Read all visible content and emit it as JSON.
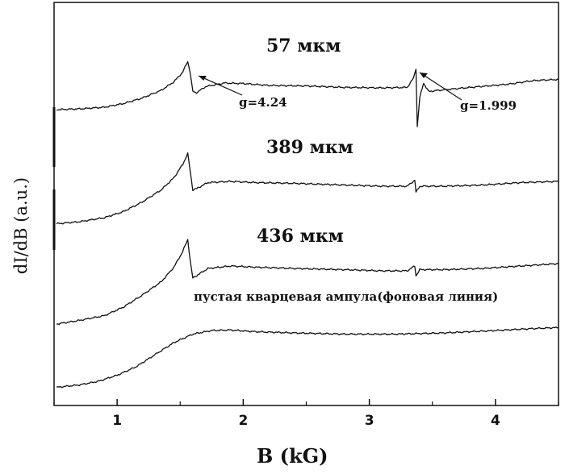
{
  "chart_data": {
    "type": "line",
    "xlabel": "B (kG)",
    "ylabel": "dI/dB (a.u.)",
    "xlim": [
      0.5,
      4.5
    ],
    "xticks": [
      1,
      2,
      3,
      4
    ],
    "xtick_labels": [
      "1",
      "2",
      "3",
      "4"
    ],
    "series_labels": {
      "s57": "57 мкм",
      "s389": "389 мкм",
      "s436": "436  мкм",
      "background": "пустая кварцевая ампула(фоновая линия)"
    },
    "annotations": {
      "g1": "g=4.24",
      "g2": "g=1.999"
    },
    "colors": {
      "line": "#111111",
      "axis": "#111111"
    },
    "series": [
      {
        "name": "57 мкм",
        "points": [
          [
            0.52,
            0.3
          ],
          [
            0.7,
            0.33
          ],
          [
            0.9,
            0.4
          ],
          [
            1.05,
            0.55
          ],
          [
            1.2,
            0.78
          ],
          [
            1.35,
            1.1
          ],
          [
            1.45,
            1.45
          ],
          [
            1.52,
            1.85
          ],
          [
            1.56,
            2.3
          ],
          [
            1.58,
            1.8
          ],
          [
            1.6,
            1.05
          ],
          [
            1.63,
            1.0
          ],
          [
            1.7,
            1.25
          ],
          [
            1.85,
            1.4
          ],
          [
            2.0,
            1.38
          ],
          [
            2.2,
            1.3
          ],
          [
            2.5,
            1.28
          ],
          [
            2.8,
            1.22
          ],
          [
            3.1,
            1.2
          ],
          [
            3.3,
            1.22
          ],
          [
            3.35,
            1.6
          ],
          [
            3.37,
            2.0
          ],
          [
            3.38,
            -0.4
          ],
          [
            3.4,
            0.8
          ],
          [
            3.43,
            1.4
          ],
          [
            3.47,
            1.05
          ],
          [
            3.55,
            1.1
          ],
          [
            3.8,
            1.22
          ],
          [
            4.1,
            1.35
          ],
          [
            4.3,
            1.5
          ],
          [
            4.5,
            1.55
          ]
        ]
      },
      {
        "name": "389 мкм",
        "points": [
          [
            0.52,
            0.25
          ],
          [
            0.7,
            0.33
          ],
          [
            0.9,
            0.5
          ],
          [
            1.05,
            0.75
          ],
          [
            1.2,
            1.15
          ],
          [
            1.35,
            1.65
          ],
          [
            1.45,
            2.15
          ],
          [
            1.52,
            2.7
          ],
          [
            1.56,
            3.15
          ],
          [
            1.58,
            2.4
          ],
          [
            1.6,
            1.65
          ],
          [
            1.63,
            1.7
          ],
          [
            1.72,
            1.95
          ],
          [
            1.9,
            2.0
          ],
          [
            2.1,
            1.95
          ],
          [
            2.4,
            1.92
          ],
          [
            2.8,
            1.85
          ],
          [
            3.1,
            1.8
          ],
          [
            3.3,
            1.8
          ],
          [
            3.36,
            2.05
          ],
          [
            3.37,
            1.55
          ],
          [
            3.4,
            1.8
          ],
          [
            3.6,
            1.8
          ],
          [
            3.9,
            1.85
          ],
          [
            4.2,
            1.95
          ],
          [
            4.5,
            2.0
          ]
        ]
      },
      {
        "name": "436  мкм",
        "points": [
          [
            0.52,
            0.2
          ],
          [
            0.7,
            0.35
          ],
          [
            0.9,
            0.55
          ],
          [
            1.05,
            0.9
          ],
          [
            1.2,
            1.4
          ],
          [
            1.35,
            1.95
          ],
          [
            1.45,
            2.55
          ],
          [
            1.52,
            3.2
          ],
          [
            1.56,
            3.7
          ],
          [
            1.58,
            2.8
          ],
          [
            1.6,
            2.1
          ],
          [
            1.63,
            2.2
          ],
          [
            1.72,
            2.5
          ],
          [
            1.9,
            2.6
          ],
          [
            2.1,
            2.55
          ],
          [
            2.4,
            2.5
          ],
          [
            2.8,
            2.45
          ],
          [
            3.1,
            2.4
          ],
          [
            3.3,
            2.4
          ],
          [
            3.36,
            2.6
          ],
          [
            3.37,
            2.2
          ],
          [
            3.4,
            2.45
          ],
          [
            3.6,
            2.45
          ],
          [
            3.9,
            2.5
          ],
          [
            4.2,
            2.6
          ],
          [
            4.5,
            2.7
          ]
        ]
      },
      {
        "name": "пустая кварцевая ампула(фоновая линия)",
        "points": [
          [
            0.52,
            0.15
          ],
          [
            0.7,
            0.25
          ],
          [
            0.85,
            0.4
          ],
          [
            1.0,
            0.65
          ],
          [
            1.15,
            1.0
          ],
          [
            1.3,
            1.5
          ],
          [
            1.45,
            2.0
          ],
          [
            1.6,
            2.35
          ],
          [
            1.75,
            2.5
          ],
          [
            1.9,
            2.52
          ],
          [
            2.1,
            2.45
          ],
          [
            2.4,
            2.4
          ],
          [
            2.8,
            2.35
          ],
          [
            3.2,
            2.35
          ],
          [
            3.6,
            2.4
          ],
          [
            4.0,
            2.5
          ],
          [
            4.3,
            2.58
          ],
          [
            4.5,
            2.62
          ]
        ]
      }
    ]
  }
}
